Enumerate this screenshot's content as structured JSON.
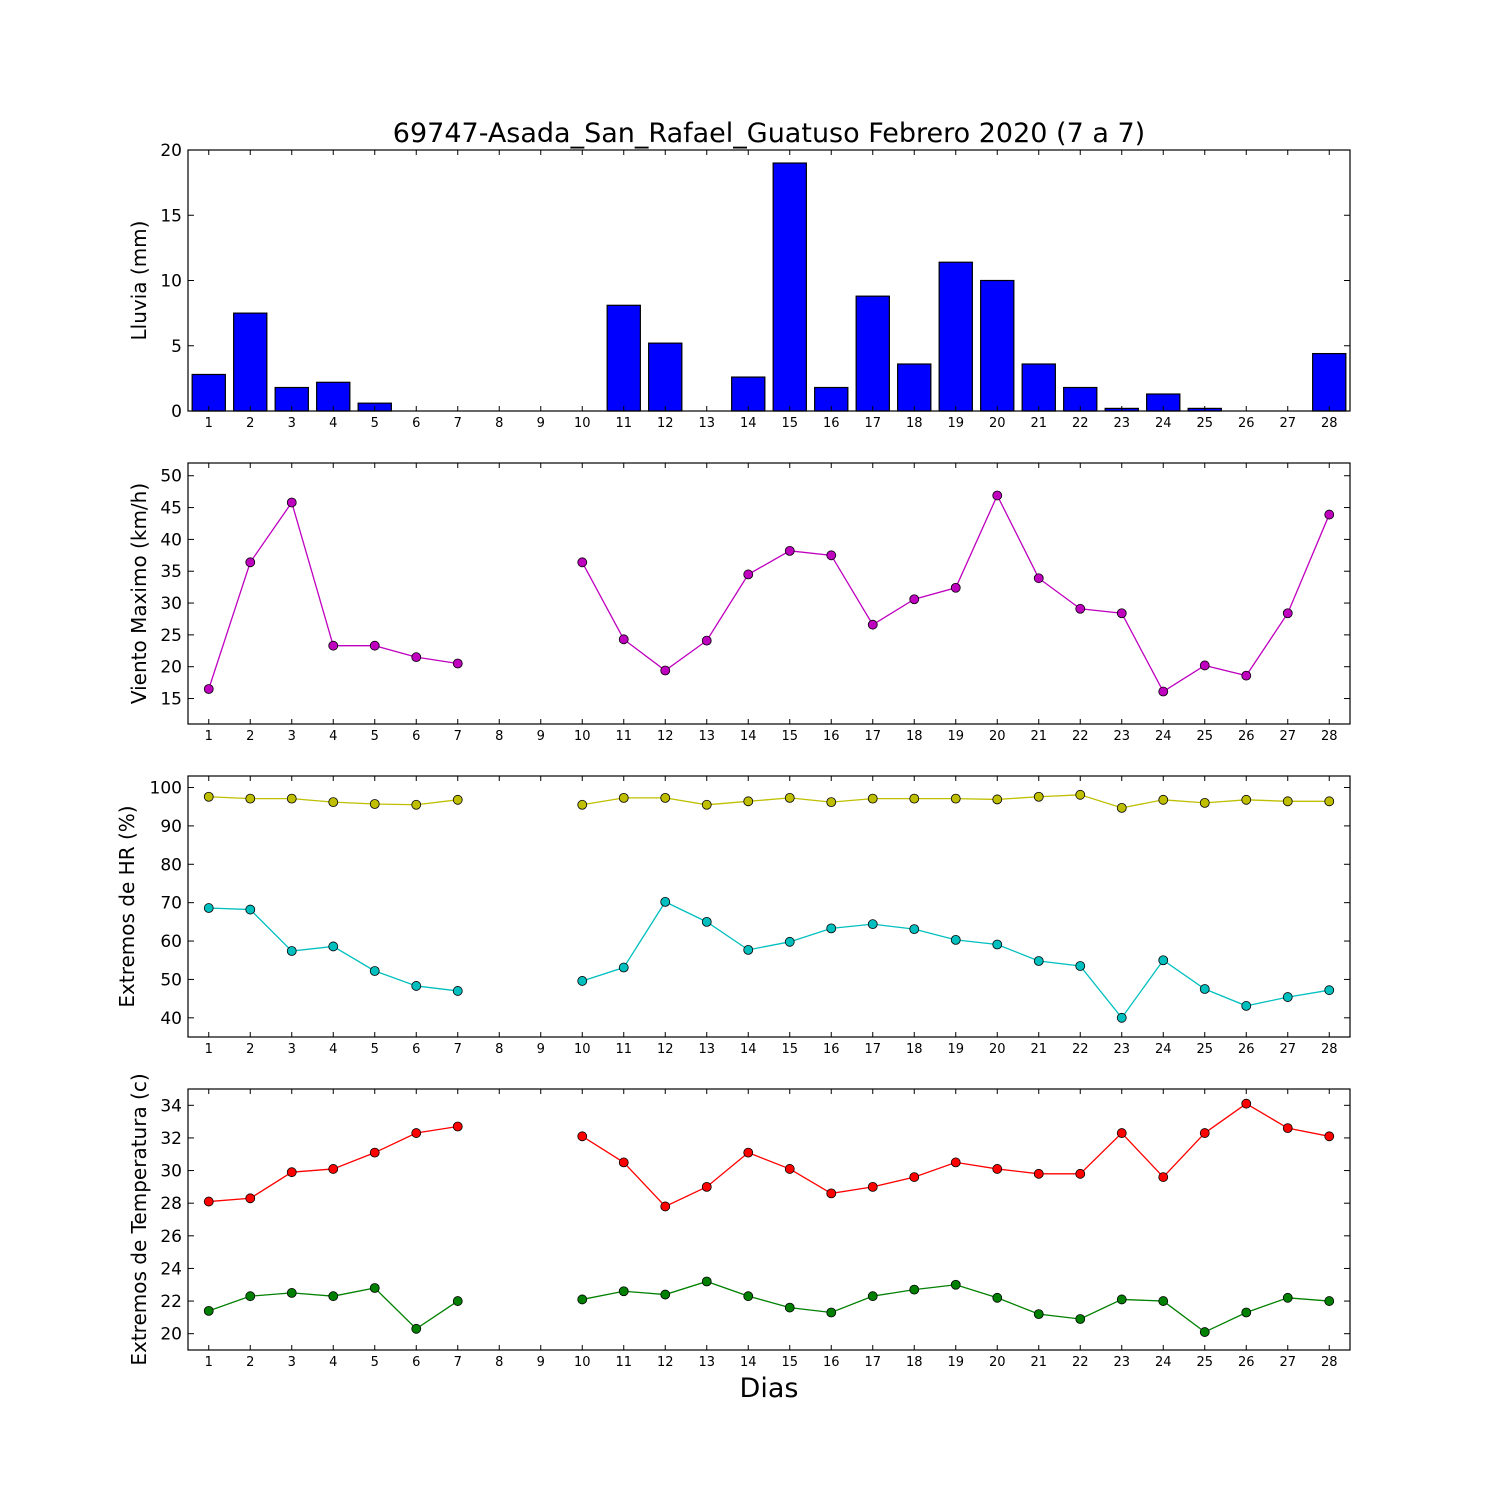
{
  "chart_data": {
    "title": "69747-Asada_San_Rafael_Guatuso Febrero 2020  (7 a 7)",
    "xlabel": "Dias",
    "days": [
      1,
      2,
      3,
      4,
      5,
      6,
      7,
      8,
      9,
      10,
      11,
      12,
      13,
      14,
      15,
      16,
      17,
      18,
      19,
      20,
      21,
      22,
      23,
      24,
      25,
      26,
      27,
      28
    ],
    "panels": [
      {
        "id": "lluvia",
        "type": "bar",
        "ylabel": "Lluvia (mm)",
        "ylim": [
          0,
          20
        ],
        "yticks": [
          0,
          5,
          10,
          15,
          20
        ],
        "series": [
          {
            "color": "#0000ff",
            "values": [
              2.8,
              7.5,
              1.8,
              2.2,
              0.6,
              0.0,
              0.0,
              0.0,
              0.0,
              0.0,
              8.1,
              5.2,
              0.0,
              2.6,
              19.0,
              1.8,
              8.8,
              3.6,
              11.4,
              10.0,
              3.6,
              1.8,
              0.2,
              1.3,
              0.2,
              0.0,
              0.0,
              4.4
            ]
          }
        ]
      },
      {
        "id": "viento",
        "type": "line",
        "ylabel": "Viento Maximo (km/h)",
        "ylim": [
          11,
          52
        ],
        "yticks": [
          15,
          20,
          25,
          30,
          35,
          40,
          45,
          50
        ],
        "series": [
          {
            "color": "#bf00bf",
            "values": [
              16.5,
              36.4,
              45.8,
              23.3,
              23.3,
              21.5,
              20.5,
              null,
              null,
              36.4,
              24.3,
              19.4,
              24.1,
              34.5,
              38.2,
              37.5,
              26.6,
              30.6,
              32.4,
              46.9,
              33.9,
              29.1,
              28.4,
              16.1,
              20.2,
              18.6,
              28.4,
              43.9
            ]
          }
        ]
      },
      {
        "id": "hr",
        "type": "line",
        "ylabel": "Extremos de HR (%)",
        "ylim": [
          35,
          103
        ],
        "yticks": [
          40,
          50,
          60,
          70,
          80,
          90,
          100
        ],
        "series": [
          {
            "color": "#bfbf00",
            "values": [
              97.6,
              97.1,
              97.1,
              96.2,
              95.7,
              95.5,
              96.8,
              null,
              null,
              95.5,
              97.3,
              97.3,
              95.5,
              96.4,
              97.3,
              96.2,
              97.1,
              97.1,
              97.1,
              96.9,
              97.6,
              98.1,
              94.7,
              96.8,
              96.0,
              96.8,
              96.4,
              96.4
            ]
          },
          {
            "color": "#00bfbf",
            "values": [
              68.6,
              68.2,
              57.4,
              58.6,
              52.2,
              48.3,
              47.0,
              null,
              null,
              49.6,
              53.1,
              70.2,
              65.0,
              57.7,
              59.8,
              63.3,
              64.4,
              63.1,
              60.3,
              59.1,
              54.8,
              53.5,
              40.0,
              55.0,
              47.5,
              43.1,
              45.4,
              47.2
            ]
          }
        ]
      },
      {
        "id": "temperatura",
        "type": "line",
        "ylabel": "Extremos de Temperatura (c)",
        "ylim": [
          19,
          35
        ],
        "yticks": [
          20,
          22,
          24,
          26,
          28,
          30,
          32,
          34
        ],
        "series": [
          {
            "color": "#ff0000",
            "values": [
              28.1,
              28.3,
              29.9,
              30.1,
              31.1,
              32.3,
              32.7,
              null,
              null,
              32.1,
              30.5,
              27.8,
              29.0,
              31.1,
              30.1,
              28.6,
              29.0,
              29.6,
              30.5,
              30.1,
              29.8,
              29.8,
              32.3,
              29.6,
              32.3,
              34.1,
              32.6,
              32.1
            ]
          },
          {
            "color": "#008000",
            "values": [
              21.4,
              22.3,
              22.5,
              22.3,
              22.8,
              20.3,
              22.0,
              null,
              null,
              22.1,
              22.6,
              22.4,
              23.2,
              22.3,
              21.6,
              21.3,
              22.3,
              22.7,
              23.0,
              22.2,
              21.2,
              20.9,
              22.1,
              22.0,
              20.1,
              21.3,
              22.2,
              22.0
            ]
          }
        ]
      }
    ]
  }
}
